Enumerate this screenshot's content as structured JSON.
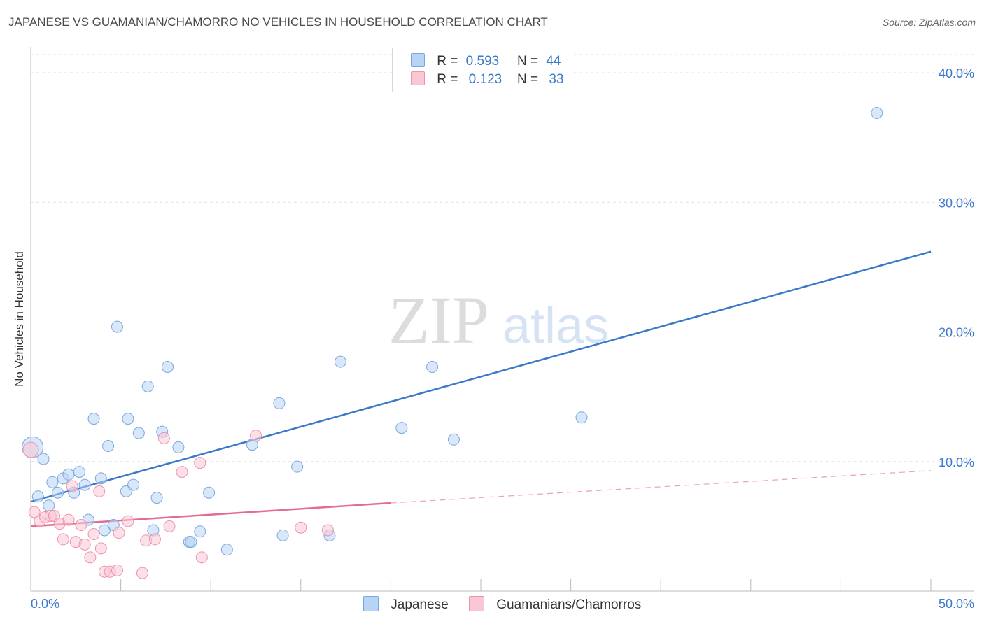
{
  "header": {
    "title": "JAPANESE VS GUAMANIAN/CHAMORRO NO VEHICLES IN HOUSEHOLD CORRELATION CHART",
    "source": "Source: ZipAtlas.com"
  },
  "watermark": {
    "zip": "ZIP",
    "atlas": "atlas"
  },
  "legend": {
    "r_label": "R =",
    "n_label": "N =",
    "series": [
      {
        "name": "Japanese",
        "r": "0.593",
        "n": "44",
        "color": "#b8d4f4",
        "stroke": "#7aa8de"
      },
      {
        "name": "Guamanians/Chamorros",
        "r": "0.123",
        "n": "33",
        "color": "#f9c6d4",
        "stroke": "#ee93ae"
      }
    ]
  },
  "chart_data": {
    "type": "scatter",
    "title": "JAPANESE VS GUAMANIAN/CHAMORRO NO VEHICLES IN HOUSEHOLD CORRELATION CHART",
    "xlabel": "",
    "ylabel": "No Vehicles in Household",
    "xlim": [
      0,
      50
    ],
    "ylim": [
      0,
      42
    ],
    "x_tick_labels": [
      "0.0%",
      "50.0%"
    ],
    "y_ticks": [
      10,
      20,
      30,
      40
    ],
    "y_tick_labels": [
      "10.0%",
      "20.0%",
      "30.0%",
      "40.0%"
    ],
    "grid": true,
    "legend_position": "top-center",
    "series": [
      {
        "name": "Japanese",
        "color": "#3a78c9",
        "fill": "#b8d4f4",
        "points": [
          [
            0.1,
            11.1
          ],
          [
            0.4,
            7.3
          ],
          [
            0.7,
            10.2
          ],
          [
            1.0,
            6.6
          ],
          [
            1.2,
            8.4
          ],
          [
            1.5,
            7.6
          ],
          [
            1.8,
            8.7
          ],
          [
            2.1,
            9.0
          ],
          [
            2.4,
            7.6
          ],
          [
            2.7,
            9.2
          ],
          [
            3.0,
            8.2
          ],
          [
            3.2,
            5.5
          ],
          [
            3.5,
            13.3
          ],
          [
            3.9,
            8.7
          ],
          [
            4.1,
            4.7
          ],
          [
            4.3,
            11.2
          ],
          [
            4.6,
            5.1
          ],
          [
            4.8,
            20.4
          ],
          [
            5.3,
            7.7
          ],
          [
            5.4,
            13.3
          ],
          [
            5.7,
            8.2
          ],
          [
            6.0,
            12.2
          ],
          [
            6.5,
            15.8
          ],
          [
            6.8,
            4.7
          ],
          [
            7.0,
            7.2
          ],
          [
            7.3,
            12.3
          ],
          [
            7.6,
            17.3
          ],
          [
            8.2,
            11.1
          ],
          [
            8.8,
            3.8
          ],
          [
            8.9,
            3.8
          ],
          [
            9.4,
            4.6
          ],
          [
            9.9,
            7.6
          ],
          [
            10.9,
            3.2
          ],
          [
            12.3,
            11.3
          ],
          [
            13.8,
            14.5
          ],
          [
            14.0,
            4.3
          ],
          [
            14.8,
            9.6
          ],
          [
            16.6,
            4.3
          ],
          [
            17.2,
            17.7
          ],
          [
            20.6,
            12.6
          ],
          [
            22.3,
            17.3
          ],
          [
            23.5,
            11.7
          ],
          [
            30.6,
            13.4
          ],
          [
            47.0,
            36.9
          ]
        ],
        "trendline": {
          "x": [
            0,
            50
          ],
          "y": [
            6.9,
            26.2
          ]
        }
      },
      {
        "name": "Guamanians/Chamorros",
        "color": "#e46b94",
        "fill": "#f9c6d4",
        "points": [
          [
            0.2,
            6.1
          ],
          [
            0.5,
            5.4
          ],
          [
            0.8,
            5.7
          ],
          [
            1.1,
            5.8
          ],
          [
            1.3,
            5.8
          ],
          [
            1.6,
            5.2
          ],
          [
            1.8,
            4.0
          ],
          [
            2.1,
            5.5
          ],
          [
            2.3,
            8.1
          ],
          [
            2.5,
            3.8
          ],
          [
            2.8,
            5.1
          ],
          [
            3.0,
            3.6
          ],
          [
            3.3,
            2.6
          ],
          [
            3.5,
            4.4
          ],
          [
            3.8,
            7.7
          ],
          [
            3.9,
            3.3
          ],
          [
            4.1,
            1.5
          ],
          [
            4.4,
            1.5
          ],
          [
            4.8,
            1.6
          ],
          [
            4.9,
            4.5
          ],
          [
            5.4,
            5.4
          ],
          [
            6.2,
            1.4
          ],
          [
            6.4,
            3.9
          ],
          [
            6.9,
            4.0
          ],
          [
            7.4,
            11.8
          ],
          [
            7.7,
            5.0
          ],
          [
            8.4,
            9.2
          ],
          [
            9.4,
            9.9
          ],
          [
            9.5,
            2.6
          ],
          [
            12.5,
            12.0
          ],
          [
            15.0,
            4.9
          ],
          [
            16.5,
            4.7
          ],
          [
            0.0,
            10.9
          ]
        ],
        "trendline": {
          "x": [
            0,
            20
          ],
          "y": [
            5.0,
            6.8
          ]
        },
        "trendline_extension": {
          "x": [
            20,
            50
          ],
          "y": [
            6.8,
            9.3
          ]
        }
      }
    ]
  }
}
